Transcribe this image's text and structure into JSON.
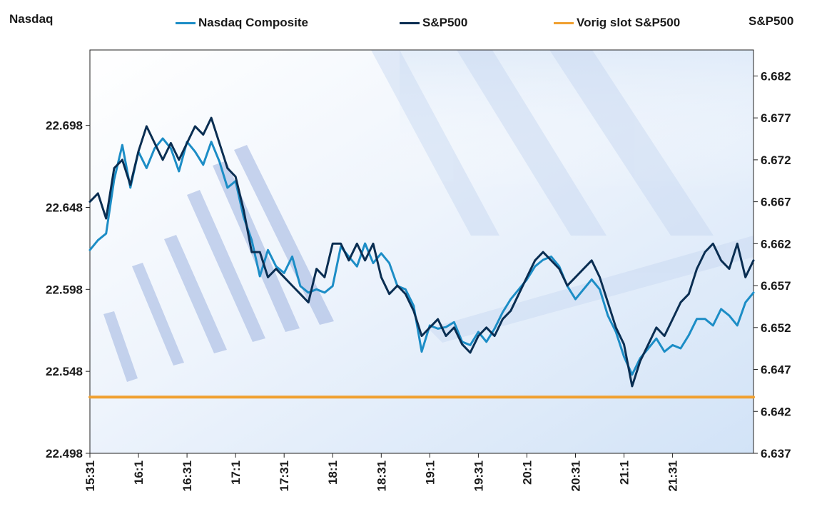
{
  "chart_data": {
    "type": "line",
    "ylabel_left": "Nasdaq",
    "ylabel_right": "S&P500",
    "x_tick_labels": [
      "15:31",
      "16:1",
      "16:31",
      "17:1",
      "17:31",
      "18:1",
      "18:31",
      "19:1",
      "19:31",
      "20:1",
      "20:31",
      "21:1",
      "21:31"
    ],
    "y_left_ticks": [
      "22.498",
      "22.548",
      "22.598",
      "22.648",
      "22.698"
    ],
    "y_left_range": [
      22.498,
      22.744
    ],
    "y_right_ticks": [
      "6.637",
      "6.642",
      "6.647",
      "6.652",
      "6.657",
      "6.662",
      "6.667",
      "6.672",
      "6.677",
      "6.682"
    ],
    "y_right_range": [
      6.637,
      6.6851
    ],
    "x_range_minutes": [
      0,
      410
    ],
    "series": [
      {
        "name": "Nasdaq Composite",
        "axis": "left",
        "color": "#1c8dc6",
        "x": [
          0,
          5,
          10,
          15,
          20,
          25,
          30,
          35,
          40,
          45,
          50,
          55,
          60,
          65,
          70,
          75,
          80,
          85,
          90,
          95,
          100,
          105,
          110,
          115,
          120,
          125,
          130,
          135,
          140,
          145,
          150,
          155,
          160,
          165,
          170,
          175,
          180,
          185,
          190,
          195,
          200,
          205,
          210,
          215,
          220,
          225,
          230,
          235,
          240,
          245,
          250,
          255,
          260,
          265,
          270,
          275,
          280,
          285,
          290,
          295,
          300,
          305,
          310,
          315,
          320,
          325,
          330,
          335,
          340,
          345,
          350,
          355,
          360,
          365,
          370,
          375,
          380,
          385,
          390,
          395,
          400,
          405,
          410
        ],
        "values": [
          22.622,
          22.628,
          22.632,
          22.665,
          22.686,
          22.66,
          22.682,
          22.672,
          22.684,
          22.69,
          22.684,
          22.67,
          22.688,
          22.682,
          22.674,
          22.688,
          22.676,
          22.66,
          22.664,
          22.642,
          22.628,
          22.606,
          22.622,
          22.612,
          22.608,
          22.618,
          22.6,
          22.596,
          22.598,
          22.596,
          22.6,
          22.624,
          22.618,
          22.612,
          22.626,
          22.614,
          22.62,
          22.614,
          22.6,
          22.598,
          22.588,
          22.56,
          22.576,
          22.574,
          22.575,
          22.578,
          22.566,
          22.564,
          22.572,
          22.566,
          22.574,
          22.584,
          22.592,
          22.598,
          22.604,
          22.612,
          22.616,
          22.618,
          22.612,
          22.6,
          22.592,
          22.598,
          22.604,
          22.598,
          22.582,
          22.572,
          22.557,
          22.546,
          22.556,
          22.562,
          22.568,
          22.56,
          22.564,
          22.562,
          22.57,
          22.58,
          22.58,
          22.576,
          22.586,
          22.582,
          22.576,
          22.59,
          22.596
        ]
      },
      {
        "name": "S&P500",
        "axis": "right",
        "color": "#0a2e52",
        "x": [
          0,
          5,
          10,
          15,
          20,
          25,
          30,
          35,
          40,
          45,
          50,
          55,
          60,
          65,
          70,
          75,
          80,
          85,
          90,
          95,
          100,
          105,
          110,
          115,
          120,
          125,
          130,
          135,
          140,
          145,
          150,
          155,
          160,
          165,
          170,
          175,
          180,
          185,
          190,
          195,
          200,
          205,
          210,
          215,
          220,
          225,
          230,
          235,
          240,
          245,
          250,
          255,
          260,
          265,
          270,
          275,
          280,
          285,
          290,
          295,
          300,
          305,
          310,
          315,
          320,
          325,
          330,
          335,
          340,
          345,
          350,
          355,
          360,
          365,
          370,
          375,
          380,
          385,
          390,
          395,
          400,
          405,
          410
        ],
        "values": [
          6.667,
          6.668,
          6.665,
          6.671,
          6.672,
          6.669,
          6.673,
          6.676,
          6.674,
          6.672,
          6.674,
          6.672,
          6.674,
          6.676,
          6.675,
          6.677,
          6.674,
          6.671,
          6.67,
          6.666,
          6.661,
          6.661,
          6.658,
          6.659,
          6.658,
          6.657,
          6.656,
          6.655,
          6.659,
          6.658,
          6.662,
          6.662,
          6.66,
          6.662,
          6.66,
          6.662,
          6.658,
          6.656,
          6.657,
          6.656,
          6.654,
          6.651,
          6.652,
          6.653,
          6.651,
          6.652,
          6.65,
          6.649,
          6.651,
          6.652,
          6.651,
          6.653,
          6.654,
          6.656,
          6.658,
          6.66,
          6.661,
          6.66,
          6.659,
          6.657,
          6.658,
          6.659,
          6.66,
          6.658,
          6.655,
          6.652,
          6.65,
          6.645,
          6.648,
          6.65,
          6.652,
          6.651,
          6.653,
          6.655,
          6.656,
          6.659,
          6.661,
          6.662,
          6.66,
          6.659,
          6.662,
          6.658,
          6.66
        ]
      },
      {
        "name": "Vorig slot S&P500",
        "axis": "right",
        "color": "#f0a030",
        "x": [
          0,
          410
        ],
        "values": [
          6.6437,
          6.6437
        ]
      }
    ]
  }
}
